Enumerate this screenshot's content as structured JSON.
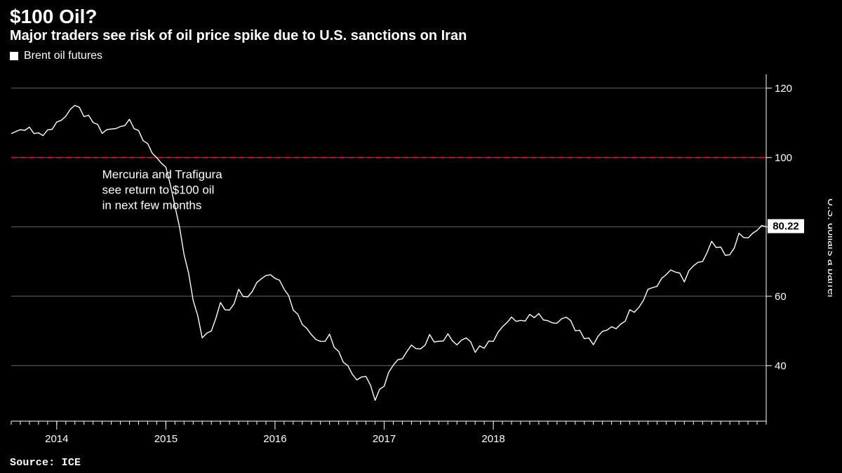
{
  "chart": {
    "type": "line",
    "title": "$100 Oil?",
    "subtitle": "Major traders see risk of oil price spike due to U.S. sanctions on Iran",
    "legend_label": "Brent oil futures",
    "source": "Source: ICE",
    "background_color": "#000000",
    "line_color": "#ffffff",
    "line_width": 1.4,
    "grid_color": "#666666",
    "grid_width": 1,
    "axis_color": "#ffffff",
    "reference_line": {
      "value": 100,
      "color": "#e4002b",
      "dash": "7,6",
      "width": 2
    },
    "annotation": {
      "lines": [
        "Mercuria and Trafigura",
        "see return to $100 oil",
        "in next few months"
      ],
      "x_index": 10,
      "y_value": 94,
      "line_height": 22
    },
    "y": {
      "label": "U.S. dollars a barrel",
      "min": 24,
      "max": 124,
      "ticks": [
        40,
        60,
        80,
        100,
        120
      ],
      "tick_fontsize": 15,
      "right_margin": 70,
      "label_gutter": 24
    },
    "x": {
      "ticks": [
        {
          "label": "2014",
          "index": 5
        },
        {
          "label": "2015",
          "index": 17
        },
        {
          "label": "2016",
          "index": 29
        },
        {
          "label": "2017",
          "index": 41
        },
        {
          "label": "2018",
          "index": 53
        }
      ],
      "minor_tick_every": 1,
      "bottom_margin": 40
    },
    "last_value": 80.22,
    "series": [
      107,
      108,
      109,
      107,
      108,
      110,
      112,
      115,
      112,
      110,
      107,
      108,
      109,
      111,
      108,
      104,
      100,
      97,
      86,
      72,
      59,
      48,
      50,
      58,
      56,
      62,
      60,
      64,
      66,
      65,
      62,
      56,
      52,
      49,
      47,
      49,
      44,
      40,
      36,
      37,
      30,
      34,
      40,
      42,
      46,
      45,
      49,
      47,
      49,
      46,
      48,
      44,
      45,
      47,
      51,
      54,
      53,
      55,
      55,
      53,
      52,
      54,
      50,
      48,
      46,
      50,
      51,
      52,
      56,
      57,
      62,
      63,
      66,
      67,
      64,
      69,
      70,
      76,
      74,
      72,
      78,
      77,
      79,
      80.22
    ]
  }
}
